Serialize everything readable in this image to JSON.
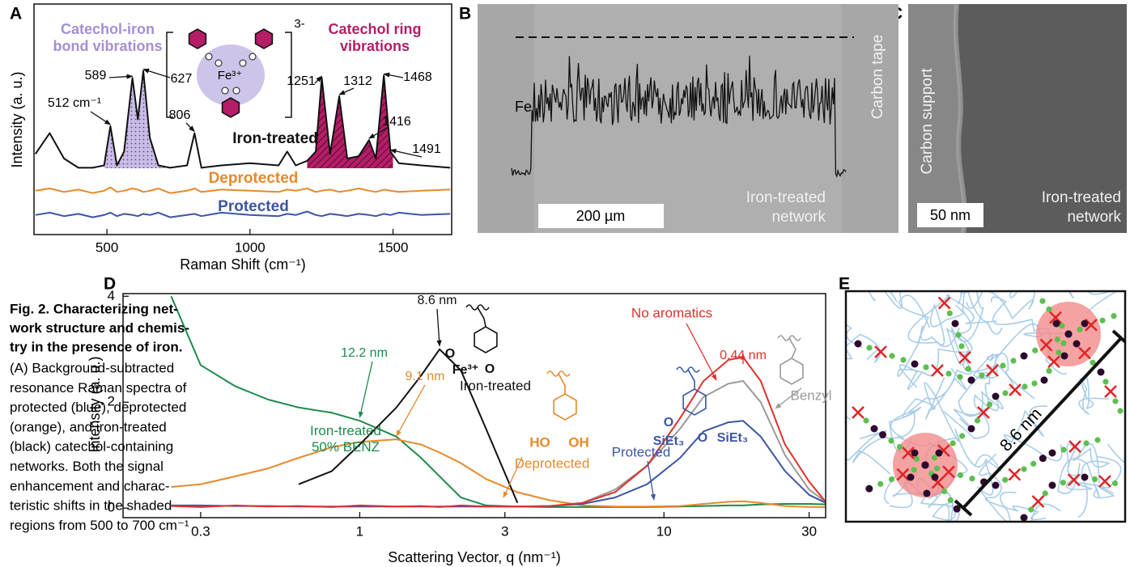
{
  "panel_labels": [
    "A",
    "B",
    "C",
    "D",
    "E"
  ],
  "chart_data": [
    {
      "type": "line",
      "x_label": "Raman Shift (cm⁻¹)",
      "y_label": "Intensity (a. u.)",
      "xlim": [
        245,
        1705
      ],
      "xticks": [
        500,
        1000,
        1500
      ],
      "ylim": [
        0,
        10
      ],
      "x": [
        250,
        300,
        350,
        400,
        450,
        490,
        512,
        535,
        560,
        589,
        608,
        627,
        650,
        680,
        720,
        780,
        806,
        830,
        900,
        1000,
        1100,
        1130,
        1160,
        1200,
        1230,
        1251,
        1280,
        1312,
        1340,
        1380,
        1416,
        1440,
        1468,
        1491,
        1520,
        1600,
        1700
      ],
      "series": [
        {
          "name": "Iron-treated",
          "color": "#111111",
          "values": [
            3.5,
            4.4,
            3.3,
            2.9,
            2.9,
            3.0,
            4.7,
            3.0,
            3.6,
            6.8,
            5.0,
            7.1,
            4.2,
            3.0,
            2.9,
            3.0,
            4.4,
            2.9,
            3.0,
            3.1,
            3.0,
            3.6,
            3.0,
            3.2,
            3.6,
            6.8,
            3.5,
            6.0,
            3.3,
            3.4,
            4.1,
            3.3,
            6.9,
            3.6,
            3.1,
            3.0,
            2.9
          ]
        },
        {
          "name": "Deprotected",
          "color": "#e8892b",
          "values": [
            1.9,
            2.0,
            1.85,
            1.95,
            1.8,
            1.9,
            2.05,
            1.85,
            1.9,
            2.0,
            1.95,
            1.85,
            1.9,
            2.0,
            1.8,
            1.9,
            2.0,
            1.85,
            1.95,
            1.9,
            1.85,
            1.95,
            1.9,
            2.0,
            1.85,
            1.9,
            1.95,
            1.85,
            1.9,
            2.0,
            1.9,
            1.85,
            1.95,
            1.9,
            1.85,
            1.9,
            1.95
          ]
        },
        {
          "name": "Protected",
          "color": "#3b55a5",
          "values": [
            0.85,
            0.95,
            0.8,
            0.9,
            0.75,
            0.85,
            0.95,
            0.8,
            0.9,
            0.85,
            0.8,
            0.9,
            0.85,
            0.95,
            0.75,
            0.85,
            0.9,
            0.8,
            0.95,
            0.85,
            0.8,
            0.9,
            0.85,
            1.0,
            0.85,
            0.8,
            0.9,
            0.85,
            0.8,
            0.9,
            0.85,
            0.8,
            0.9,
            0.85,
            0.95,
            0.85,
            0.9
          ]
        }
      ],
      "regions": [
        {
          "label": "Catechol-iron bond vibrations",
          "color": "#a58fd2",
          "range": [
            490,
            700
          ]
        },
        {
          "label": "Catechol ring vibrations",
          "color": "#b51d67",
          "range": [
            1200,
            1500
          ]
        }
      ],
      "peak_labels": [
        {
          "value": 512,
          "label": "512 cm⁻¹"
        },
        589,
        627,
        806,
        1251,
        1312,
        1416,
        1468,
        1491
      ],
      "inset": {
        "ion": "Fe³⁺",
        "charge": "3-"
      }
    },
    {
      "type": "line",
      "log_x": true,
      "x_label": "Scattering Vector, q (nm⁻¹)",
      "y_label": "Intensity (a. u.)",
      "xlim": [
        0.1667,
        34
      ],
      "xticks": [
        0.3,
        1,
        3,
        10,
        30
      ],
      "ylim": [
        -0.18,
        4.05
      ],
      "yticks": [
        0,
        2,
        4
      ],
      "x": [
        0.24,
        0.3,
        0.39,
        0.5,
        0.63,
        0.81,
        1,
        1.32,
        1.59,
        1.83,
        2.15,
        2.6,
        3.3,
        4.2,
        5.4,
        6.9,
        8.8,
        11.3,
        13.5,
        16.3,
        18.2,
        20.8,
        25,
        30,
        34
      ],
      "series": [
        {
          "name": "Iron-treated 50% BENZ",
          "color": "#1d8a4c",
          "values": [
            4.0,
            2.7,
            2.3,
            2.05,
            1.9,
            1.8,
            1.65,
            1.35,
            0.95,
            0.6,
            0.2,
            0.05,
            0.03,
            0.02,
            0.02,
            0.02,
            0.02,
            0.03,
            0.04,
            0.05,
            0.05,
            0.07,
            0.08,
            0.08,
            0.07
          ]
        },
        {
          "name": "Iron-treated",
          "color": "#111111",
          "values": [
            null,
            null,
            null,
            null,
            0.45,
            0.7,
            1.2,
            1.9,
            2.5,
            3.0,
            2.6,
            1.5,
            0.1,
            null,
            null,
            null,
            null,
            null,
            null,
            null,
            null,
            null,
            null,
            null,
            null
          ]
        },
        {
          "name": "Deprotected",
          "color": "#e8892b",
          "values": [
            0.4,
            0.45,
            0.6,
            0.75,
            0.95,
            1.15,
            1.25,
            1.3,
            1.2,
            1.05,
            0.85,
            0.55,
            0.3,
            0.15,
            0.05,
            0.03,
            0.03,
            0.04,
            0.08,
            0.12,
            0.13,
            0.1,
            0.04,
            0.02,
            0.02
          ]
        },
        {
          "name": "Protected",
          "color": "#3b55a5",
          "values": [
            0.05,
            0.05,
            0.04,
            0.04,
            0.03,
            0.03,
            0.03,
            0.03,
            0.03,
            0.03,
            0.03,
            0.03,
            0.03,
            0.04,
            0.08,
            0.2,
            0.45,
            0.95,
            1.45,
            1.62,
            1.65,
            1.35,
            0.7,
            0.25,
            0.1
          ]
        },
        {
          "name": "Benzyl",
          "color": "#9a9a9a",
          "values": [
            null,
            null,
            null,
            null,
            null,
            null,
            null,
            null,
            null,
            null,
            null,
            null,
            null,
            null,
            0.1,
            0.35,
            0.8,
            1.5,
            2.1,
            2.35,
            2.4,
            2.0,
            1.0,
            0.35,
            0.12
          ]
        },
        {
          "name": "No aromatics",
          "color": "#e0302a",
          "values": [
            0.04,
            0.02,
            0.05,
            0.03,
            0.04,
            0.02,
            0.05,
            0.03,
            0.04,
            0.02,
            0.05,
            0.03,
            0.03,
            0.04,
            0.1,
            0.3,
            0.8,
            1.7,
            2.4,
            2.8,
            2.85,
            2.4,
            1.2,
            0.5,
            0.12
          ]
        }
      ],
      "annotations": [
        {
          "text": "8.6 nm",
          "x": 1.83,
          "y": 3.0,
          "color": "#111111"
        },
        {
          "text": "12.2 nm",
          "x": 1.0,
          "y": 1.65,
          "color": "#1d8a4c"
        },
        {
          "text": "9.1 nm",
          "x": 1.32,
          "y": 1.3,
          "color": "#e8892b"
        },
        {
          "text": "0.44 nm",
          "x": 18.2,
          "y": 2.85,
          "color": "#e0302a"
        }
      ],
      "structures": [
        {
          "color": "#111111",
          "labels": [
            "O",
            "Fe³⁺",
            "O"
          ]
        },
        {
          "color": "#e8892b",
          "labels": [
            "HO",
            "OH"
          ]
        },
        {
          "color": "#3b55a5",
          "labels": [
            "O",
            "SiEt₃",
            "O",
            "SiEt₃"
          ]
        }
      ]
    }
  ],
  "micrographs": [
    {
      "labels": [
        "Fe",
        "Carbon tape",
        "Iron-treated network"
      ],
      "scale_bar": "200 µm"
    },
    {
      "labels": [
        "Carbon support",
        "Iron-treated network"
      ],
      "scale_bar": "50 nm"
    }
  ],
  "schematic": {
    "scale_bar": "8.6 nm"
  },
  "caption": {
    "title_lines": [
      "Fig. 2. Characterizing net-",
      "work structure and chemis-",
      "try in the presence of iron."
    ],
    "body_lines": [
      "(A) Background-subtracted",
      "resonance Raman spectra of",
      "protected (blue), deprotected",
      "(orange), and iron-treated",
      "(black) catechol-containing",
      "networks. Both the signal",
      "enhancement and charac-",
      "teristic shifts in the shaded",
      "regions from 500 to 700 cm⁻¹"
    ]
  }
}
